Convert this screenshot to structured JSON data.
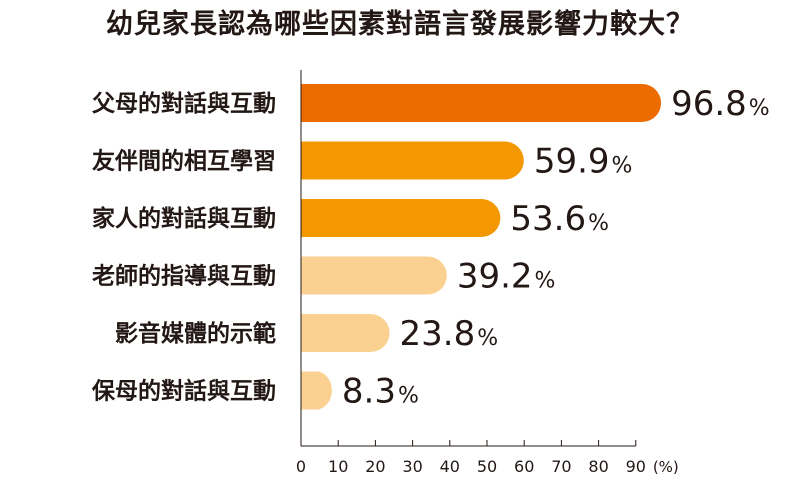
{
  "chart_data": {
    "type": "bar",
    "orientation": "horizontal",
    "title": "幼兒家長認為哪些因素對語言發展影響力較大？",
    "categories": [
      "父母的對話與互動",
      "友伴間的相互學習",
      "家人的對話與互動",
      "老師的指導與互動",
      "影音媒體的示範",
      "保母的對話與互動"
    ],
    "values": [
      96.8,
      59.9,
      53.6,
      39.2,
      23.8,
      8.3
    ],
    "value_suffix": "%",
    "xlim": [
      0,
      100
    ],
    "xticks": [
      0,
      10,
      20,
      30,
      40,
      50,
      60,
      70,
      80,
      90
    ],
    "xunit": "(%)",
    "colors": [
      "#EC6C00",
      "#F39800",
      "#F39800",
      "#FAD191",
      "#FAD191",
      "#FAD191"
    ]
  }
}
